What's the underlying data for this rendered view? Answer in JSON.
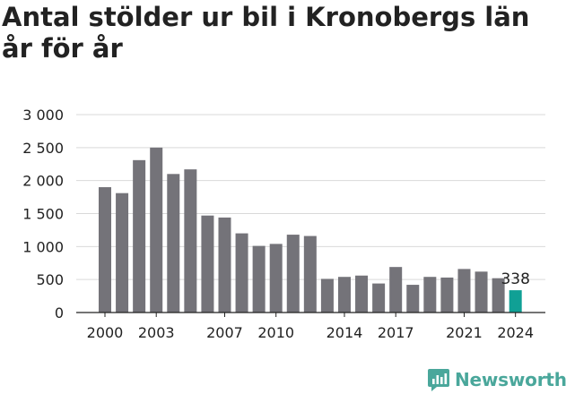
{
  "title": "Antal stölder ur bil i Kronobergs län år för år",
  "brand": {
    "name": "Newsworthy",
    "color": "#4aa79b"
  },
  "colors": {
    "bar": "#747379",
    "highlight": "#10a095",
    "grid": "#d9d9d9",
    "axis": "#222222"
  },
  "chart_data": {
    "type": "bar",
    "title": "Antal stölder ur bil i Kronobergs län år för år",
    "xlabel": "",
    "ylabel": "",
    "ylim": [
      0,
      3000
    ],
    "yticks": [
      "0",
      "500",
      "1 000",
      "1 500",
      "2 000",
      "2 500",
      "3 000"
    ],
    "ytick_values": [
      0,
      500,
      1000,
      1500,
      2000,
      2500,
      3000
    ],
    "xtick_labels": [
      "2000",
      "2003",
      "2007",
      "2010",
      "2014",
      "2017",
      "2021",
      "2024"
    ],
    "categories": [
      "2000",
      "2001",
      "2002",
      "2003",
      "2004",
      "2005",
      "2006",
      "2007",
      "2008",
      "2009",
      "2010",
      "2011",
      "2012",
      "2013",
      "2014",
      "2015",
      "2016",
      "2017",
      "2018",
      "2019",
      "2020",
      "2021",
      "2022",
      "2023",
      "2024"
    ],
    "values": [
      1900,
      1810,
      2310,
      2500,
      2100,
      2170,
      1470,
      1440,
      1200,
      1010,
      1040,
      1180,
      1160,
      510,
      540,
      560,
      440,
      690,
      420,
      540,
      530,
      660,
      620,
      520,
      338
    ],
    "highlight_index": 24,
    "data_labels": [
      {
        "category": "2024",
        "text": "338"
      }
    ],
    "grid": true,
    "legend": "none"
  }
}
